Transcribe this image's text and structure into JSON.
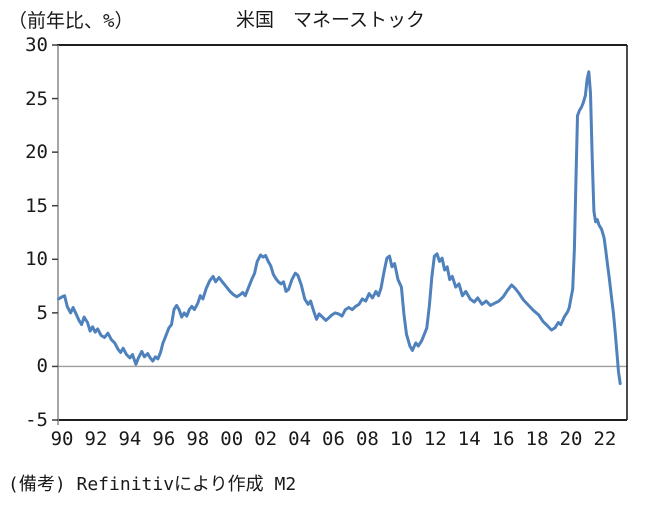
{
  "header": {
    "unit_label": "（前年比、%）",
    "title": "米国　マネーストック"
  },
  "footer": {
    "note": "(備考) Refinitivにより作成 M2"
  },
  "chart_data": {
    "type": "line",
    "title": "米国　マネーストック",
    "ylabel": "（前年比、%）",
    "source_note": "(備考) Refinitivにより作成 M2",
    "line_color": "#4F81BD",
    "zero_line_color": "#9e9e9e",
    "axis_color": "#1f1f1f",
    "left_axis_color": "#8f8f8f",
    "tick_color": "#3f3f3f",
    "ylim": [
      -5,
      30
    ],
    "y_ticks": [
      30,
      25,
      20,
      15,
      10,
      5,
      0,
      -5
    ],
    "y_tick_labels": [
      "30",
      "25",
      "20",
      "15",
      "10",
      "5",
      "0",
      "-5"
    ],
    "x_tick_years": [
      90,
      92,
      94,
      96,
      98,
      100,
      102,
      104,
      106,
      108,
      110,
      112,
      114,
      116,
      118,
      120,
      122
    ],
    "x_tick_labels": [
      "90",
      "92",
      "94",
      "96",
      "98",
      "00",
      "02",
      "04",
      "06",
      "08",
      "10",
      "12",
      "14",
      "16",
      "18",
      "20",
      "22"
    ],
    "x_range": [
      89.76,
      123.3
    ],
    "grid": false,
    "legend": "none",
    "zero_line": true,
    "series": [
      {
        "name": "米国M2（前年比、%）",
        "points": [
          [
            89.8,
            6.3
          ],
          [
            90.0,
            6.5
          ],
          [
            90.15,
            6.6
          ],
          [
            90.3,
            5.6
          ],
          [
            90.5,
            5.0
          ],
          [
            90.65,
            5.5
          ],
          [
            90.8,
            5.0
          ],
          [
            91.0,
            4.3
          ],
          [
            91.15,
            3.9
          ],
          [
            91.3,
            4.6
          ],
          [
            91.5,
            4.1
          ],
          [
            91.65,
            3.3
          ],
          [
            91.8,
            3.7
          ],
          [
            91.95,
            3.2
          ],
          [
            92.1,
            3.5
          ],
          [
            92.3,
            2.9
          ],
          [
            92.5,
            2.7
          ],
          [
            92.7,
            3.1
          ],
          [
            92.9,
            2.5
          ],
          [
            93.1,
            2.2
          ],
          [
            93.3,
            1.6
          ],
          [
            93.45,
            1.3
          ],
          [
            93.6,
            1.7
          ],
          [
            93.8,
            1.1
          ],
          [
            94.0,
            0.8
          ],
          [
            94.15,
            1.1
          ],
          [
            94.35,
            0.2
          ],
          [
            94.5,
            0.8
          ],
          [
            94.7,
            1.4
          ],
          [
            94.85,
            0.9
          ],
          [
            95.05,
            1.2
          ],
          [
            95.2,
            0.8
          ],
          [
            95.35,
            0.5
          ],
          [
            95.5,
            0.9
          ],
          [
            95.65,
            0.7
          ],
          [
            95.8,
            1.3
          ],
          [
            95.95,
            2.2
          ],
          [
            96.1,
            2.8
          ],
          [
            96.3,
            3.6
          ],
          [
            96.45,
            3.9
          ],
          [
            96.6,
            5.3
          ],
          [
            96.75,
            5.7
          ],
          [
            96.9,
            5.3
          ],
          [
            97.05,
            4.6
          ],
          [
            97.2,
            5.0
          ],
          [
            97.35,
            4.7
          ],
          [
            97.5,
            5.3
          ],
          [
            97.65,
            5.6
          ],
          [
            97.8,
            5.3
          ],
          [
            98.0,
            5.9
          ],
          [
            98.15,
            6.6
          ],
          [
            98.3,
            6.3
          ],
          [
            98.5,
            7.3
          ],
          [
            98.7,
            8.0
          ],
          [
            98.9,
            8.4
          ],
          [
            99.05,
            7.9
          ],
          [
            99.25,
            8.3
          ],
          [
            99.5,
            7.8
          ],
          [
            99.7,
            7.4
          ],
          [
            99.9,
            7.0
          ],
          [
            100.1,
            6.7
          ],
          [
            100.3,
            6.5
          ],
          [
            100.5,
            6.7
          ],
          [
            100.65,
            6.9
          ],
          [
            100.8,
            6.6
          ],
          [
            100.95,
            7.2
          ],
          [
            101.2,
            8.2
          ],
          [
            101.35,
            8.7
          ],
          [
            101.5,
            9.8
          ],
          [
            101.7,
            10.4
          ],
          [
            101.85,
            10.2
          ],
          [
            102.0,
            10.35
          ],
          [
            102.15,
            9.8
          ],
          [
            102.3,
            9.4
          ],
          [
            102.45,
            8.6
          ],
          [
            102.6,
            8.2
          ],
          [
            102.75,
            7.9
          ],
          [
            102.9,
            7.7
          ],
          [
            103.05,
            7.9
          ],
          [
            103.2,
            7.0
          ],
          [
            103.35,
            7.2
          ],
          [
            103.55,
            8.1
          ],
          [
            103.75,
            8.7
          ],
          [
            103.9,
            8.5
          ],
          [
            104.1,
            7.6
          ],
          [
            104.3,
            6.3
          ],
          [
            104.5,
            5.8
          ],
          [
            104.65,
            6.1
          ],
          [
            104.8,
            5.3
          ],
          [
            105.0,
            4.4
          ],
          [
            105.15,
            4.9
          ],
          [
            105.35,
            4.6
          ],
          [
            105.55,
            4.3
          ],
          [
            105.7,
            4.5
          ],
          [
            105.9,
            4.8
          ],
          [
            106.1,
            5.0
          ],
          [
            106.3,
            4.9
          ],
          [
            106.5,
            4.7
          ],
          [
            106.7,
            5.3
          ],
          [
            106.9,
            5.5
          ],
          [
            107.1,
            5.3
          ],
          [
            107.3,
            5.6
          ],
          [
            107.5,
            5.8
          ],
          [
            107.7,
            6.3
          ],
          [
            107.9,
            6.1
          ],
          [
            108.1,
            6.8
          ],
          [
            108.3,
            6.4
          ],
          [
            108.5,
            7.0
          ],
          [
            108.65,
            6.6
          ],
          [
            108.8,
            7.3
          ],
          [
            109.0,
            9.0
          ],
          [
            109.15,
            10.1
          ],
          [
            109.3,
            10.3
          ],
          [
            109.45,
            9.3
          ],
          [
            109.6,
            9.6
          ],
          [
            109.8,
            8.1
          ],
          [
            110.0,
            7.4
          ],
          [
            110.15,
            4.9
          ],
          [
            110.3,
            3.0
          ],
          [
            110.5,
            1.9
          ],
          [
            110.65,
            1.5
          ],
          [
            110.85,
            2.2
          ],
          [
            111.0,
            1.9
          ],
          [
            111.2,
            2.4
          ],
          [
            111.35,
            3.0
          ],
          [
            111.5,
            3.6
          ],
          [
            111.65,
            5.7
          ],
          [
            111.8,
            8.4
          ],
          [
            111.95,
            10.3
          ],
          [
            112.1,
            10.5
          ],
          [
            112.25,
            9.8
          ],
          [
            112.4,
            10.1
          ],
          [
            112.55,
            9.0
          ],
          [
            112.7,
            9.3
          ],
          [
            112.85,
            8.1
          ],
          [
            113.0,
            8.4
          ],
          [
            113.2,
            7.4
          ],
          [
            113.4,
            7.7
          ],
          [
            113.6,
            6.6
          ],
          [
            113.8,
            7.0
          ],
          [
            114.05,
            6.3
          ],
          [
            114.3,
            6.0
          ],
          [
            114.5,
            6.4
          ],
          [
            114.75,
            5.8
          ],
          [
            115.0,
            6.1
          ],
          [
            115.25,
            5.7
          ],
          [
            115.5,
            5.9
          ],
          [
            115.75,
            6.1
          ],
          [
            116.0,
            6.5
          ],
          [
            116.25,
            7.1
          ],
          [
            116.5,
            7.6
          ],
          [
            116.7,
            7.3
          ],
          [
            116.9,
            6.9
          ],
          [
            117.2,
            6.2
          ],
          [
            117.5,
            5.7
          ],
          [
            117.8,
            5.2
          ],
          [
            118.1,
            4.8
          ],
          [
            118.35,
            4.2
          ],
          [
            118.6,
            3.8
          ],
          [
            118.85,
            3.4
          ],
          [
            119.05,
            3.6
          ],
          [
            119.25,
            4.1
          ],
          [
            119.4,
            3.9
          ],
          [
            119.6,
            4.6
          ],
          [
            119.8,
            5.1
          ],
          [
            119.9,
            5.5
          ],
          [
            120.0,
            6.4
          ],
          [
            120.1,
            7.2
          ],
          [
            120.2,
            11.0
          ],
          [
            120.3,
            18.0
          ],
          [
            120.38,
            23.4
          ],
          [
            120.5,
            23.9
          ],
          [
            120.62,
            24.2
          ],
          [
            120.72,
            24.6
          ],
          [
            120.85,
            25.3
          ],
          [
            120.95,
            26.8
          ],
          [
            121.05,
            27.5
          ],
          [
            121.15,
            25.5
          ],
          [
            121.25,
            19.5
          ],
          [
            121.35,
            14.5
          ],
          [
            121.45,
            13.5
          ],
          [
            121.55,
            13.7
          ],
          [
            121.65,
            13.2
          ],
          [
            121.8,
            12.8
          ],
          [
            121.95,
            12.0
          ],
          [
            122.05,
            10.8
          ],
          [
            122.15,
            9.5
          ],
          [
            122.25,
            8.3
          ],
          [
            122.4,
            6.3
          ],
          [
            122.5,
            5.0
          ],
          [
            122.6,
            3.3
          ],
          [
            122.7,
            1.4
          ],
          [
            122.8,
            -0.5
          ],
          [
            122.9,
            -1.6
          ]
        ]
      }
    ]
  }
}
